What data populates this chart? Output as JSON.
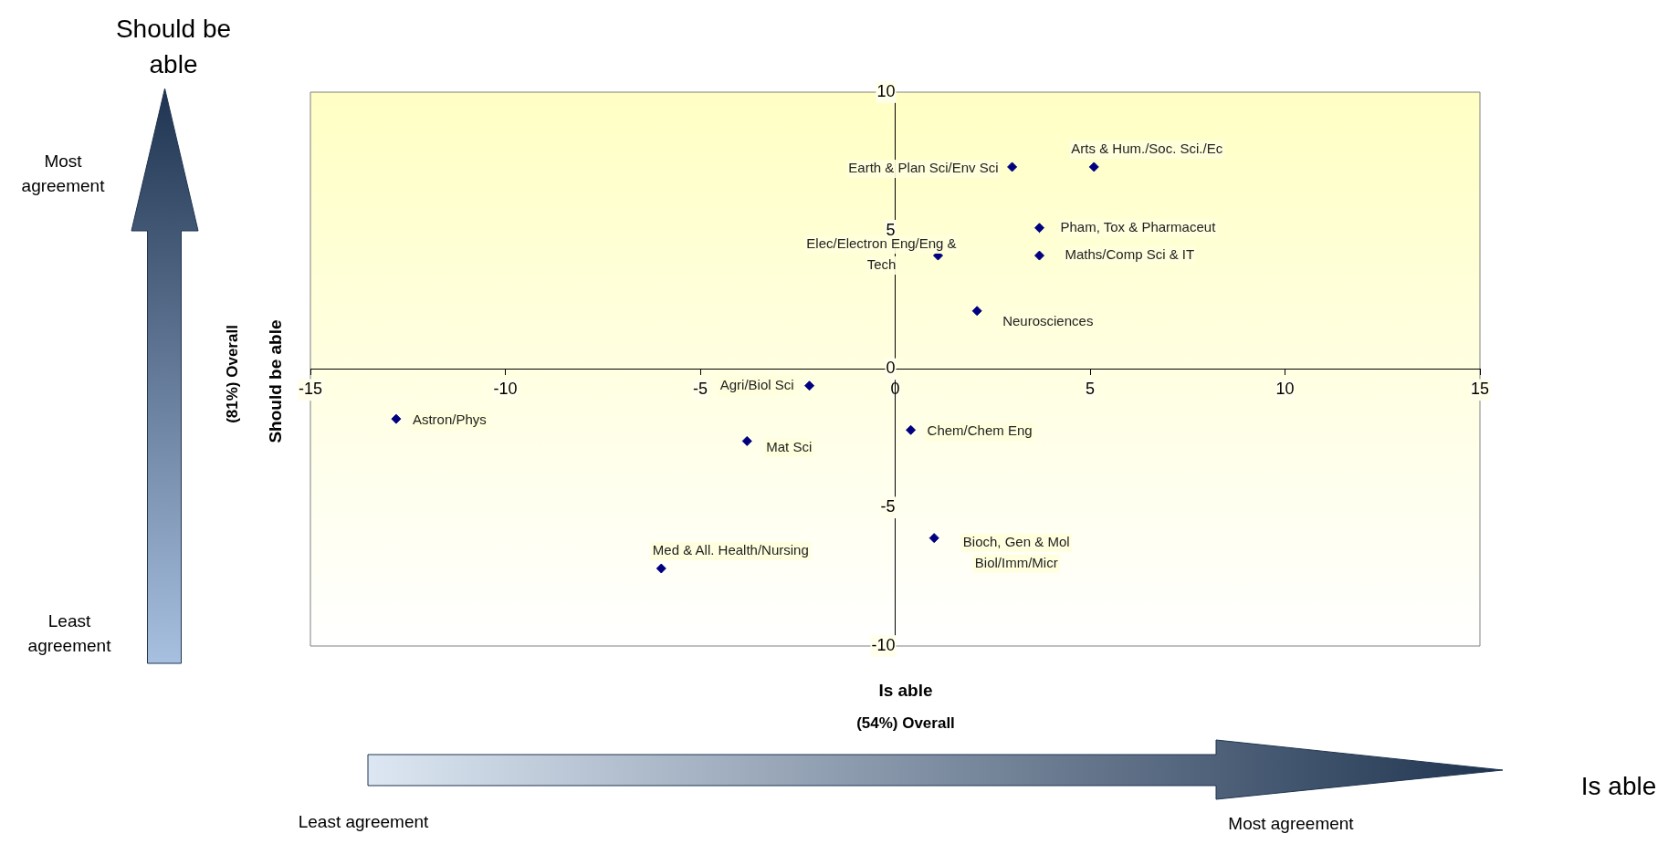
{
  "chart_data": {
    "type": "scatter",
    "xlabel": "Is able",
    "ylabel": "Should be able",
    "x": [
      3.0,
      5.1,
      3.7,
      1.1,
      3.7,
      2.1,
      -2.2,
      -12.8,
      -3.8,
      0.4,
      1.0,
      -6.0
    ],
    "series": [
      {
        "color": "#000080",
        "values": [
          7.3,
          7.3,
          5.1,
          4.1,
          4.1,
          2.1,
          -0.6,
          -1.8,
          -2.6,
          -2.2,
          -6.1,
          -7.2
        ]
      }
    ],
    "xlim": [
      -15,
      15
    ],
    "ylim": [
      -10,
      10
    ],
    "xticks": [
      -15,
      -10,
      -5,
      0,
      5,
      10,
      15
    ],
    "yticks": [
      -10,
      -5,
      0,
      5,
      10
    ],
    "grid": false,
    "legend": false,
    "marker": "diamond",
    "annotations": [
      "Should  be able",
      "Most agreement",
      "Least agreement",
      "(81%)  Overall",
      "(54%)  Overall",
      "Is able",
      "Least agreement",
      "Most agreement",
      {
        "text": "Earth & Plan Sci/Env Sci",
        "x": 3.0,
        "y": 7.3
      },
      {
        "text": "Arts & Hum./Soc. Sci./Ec",
        "x": 5.1,
        "y": 7.3
      },
      {
        "text": "Pham, Tox & Pharmaceut",
        "x": 3.7,
        "y": 5.1
      },
      {
        "text": "Elec/Electron Eng/Eng & Tech",
        "x": 1.1,
        "y": 4.1
      },
      {
        "text": "Maths/Comp Sci & IT",
        "x": 3.7,
        "y": 4.1
      },
      {
        "text": "Neurosciences",
        "x": 2.1,
        "y": 2.1
      },
      {
        "text": "Agri/Biol Sci",
        "x": -2.2,
        "y": -0.6
      },
      {
        "text": "Astron/Phys",
        "x": -12.8,
        "y": -1.8
      },
      {
        "text": "Mat Sci",
        "x": -3.8,
        "y": -2.6
      },
      {
        "text": "Chem/Chem Eng",
        "x": 0.4,
        "y": -2.2
      },
      {
        "text": "Bioch, Gen & Mol Biol/Imm/Micr",
        "x": 1.0,
        "y": -6.1
      },
      {
        "text": "Med & All. Health/Nursing",
        "x": -6.0,
        "y": -7.2
      }
    ]
  }
}
